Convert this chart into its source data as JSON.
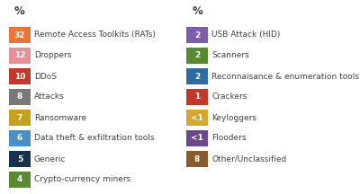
{
  "left_items": [
    {
      "value": "32",
      "label": "Remote Access Toolkits (RATs)",
      "color": "#E8763A"
    },
    {
      "value": "12",
      "label": "Droppers",
      "color": "#E8909A"
    },
    {
      "value": "10",
      "label": "DDoS",
      "color": "#C0392B"
    },
    {
      "value": "8",
      "label": "Attacks",
      "color": "#787878"
    },
    {
      "value": "7",
      "label": "Ransomware",
      "color": "#C8A020"
    },
    {
      "value": "6",
      "label": "Data theft & exfiltration tools",
      "color": "#4A90C4"
    },
    {
      "value": "5",
      "label": "Generic",
      "color": "#1A3050"
    },
    {
      "value": "4",
      "label": "Crypto-currency miners",
      "color": "#5A8A30"
    }
  ],
  "right_items": [
    {
      "value": "2",
      "label": "USB Attack (HID)",
      "color": "#7B5EA7"
    },
    {
      "value": "2",
      "label": "Scanners",
      "color": "#5A8A30"
    },
    {
      "value": "2",
      "label": "Reconnaisance & enumeration tools",
      "color": "#2E6DA4"
    },
    {
      "value": "1",
      "label": "Crackers",
      "color": "#C0392B"
    },
    {
      "value": "<1",
      "label": "Keyloggers",
      "color": "#D4A830"
    },
    {
      "value": "<1",
      "label": "Flooders",
      "color": "#6B4A8A"
    },
    {
      "value": "8",
      "label": "Other/Unclassified",
      "color": "#8B5A2B"
    }
  ],
  "left_header": "%",
  "right_header": "%",
  "bg_color": "#FFFFFF",
  "text_color": "#444444",
  "font_size": 6.5,
  "header_font_size": 8.5,
  "value_font_size": 6.5
}
